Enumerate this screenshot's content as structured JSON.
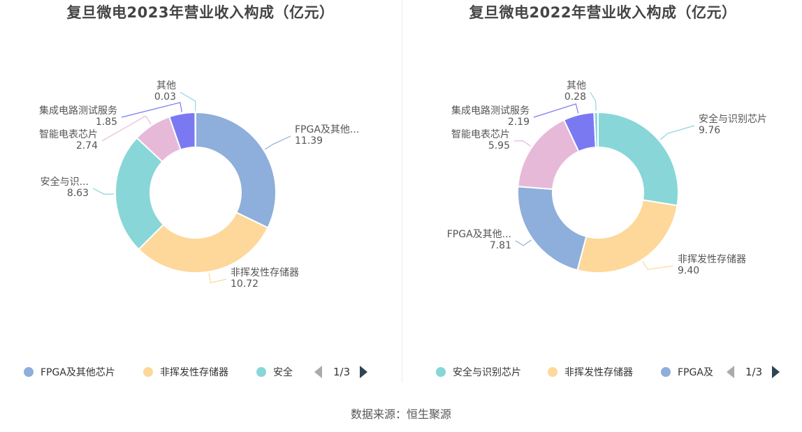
{
  "chart_data": [
    {
      "type": "pie",
      "variant": "donut",
      "title": "复旦微电2023年营业收入构成（亿元）",
      "series": [
        {
          "name": "FPGA及其他芯片",
          "display": "FPGA及其他...",
          "value": 11.39,
          "value_text": "11.39",
          "color": "#8eaedb"
        },
        {
          "name": "非挥发性存储器",
          "display": "非挥发性存储器",
          "value": 10.72,
          "value_text": "10.72",
          "color": "#fdd89a"
        },
        {
          "name": "安全与识别芯片",
          "display": "安全与识...",
          "value": 8.63,
          "value_text": "8.63",
          "color": "#88d6d8"
        },
        {
          "name": "智能电表芯片",
          "display": "智能电表芯片",
          "value": 2.74,
          "value_text": "2.74",
          "color": "#e7b9d9"
        },
        {
          "name": "集成电路测试服务",
          "display": "集成电路测试服务",
          "value": 1.85,
          "value_text": "1.85",
          "color": "#7b79f2"
        },
        {
          "name": "其他",
          "display": "其他",
          "value": 0.03,
          "value_text": "0.03",
          "color": "#8fd6e8"
        }
      ],
      "legend": {
        "placement": "bottom",
        "items": [
          "FPGA及其他芯片",
          "非挥发性存储器",
          "安全"
        ],
        "page": "1/3"
      }
    },
    {
      "type": "pie",
      "variant": "donut",
      "title": "复旦微电2022年营业收入构成（亿元）",
      "series": [
        {
          "name": "安全与识别芯片",
          "display": "安全与识别芯片",
          "value": 9.76,
          "value_text": "9.76",
          "color": "#88d6d8"
        },
        {
          "name": "非挥发性存储器",
          "display": "非挥发性存储器",
          "value": 9.4,
          "value_text": "9.40",
          "color": "#fdd89a"
        },
        {
          "name": "FPGA及其他芯片",
          "display": "FPGA及其他...",
          "value": 7.81,
          "value_text": "7.81",
          "color": "#8eaedb"
        },
        {
          "name": "智能电表芯片",
          "display": "智能电表芯片",
          "value": 5.95,
          "value_text": "5.95",
          "color": "#e7b9d9"
        },
        {
          "name": "集成电路测试服务",
          "display": "集成电路测试服务",
          "value": 2.19,
          "value_text": "2.19",
          "color": "#7b79f2"
        },
        {
          "name": "其他",
          "display": "其他",
          "value": 0.28,
          "value_text": "0.28",
          "color": "#8fd6e8"
        }
      ],
      "legend": {
        "placement": "bottom",
        "items": [
          "安全与识别芯片",
          "非挥发性存储器",
          "FPGA及"
        ],
        "page": "1/3"
      }
    }
  ],
  "source": "数据来源：恒生聚源"
}
